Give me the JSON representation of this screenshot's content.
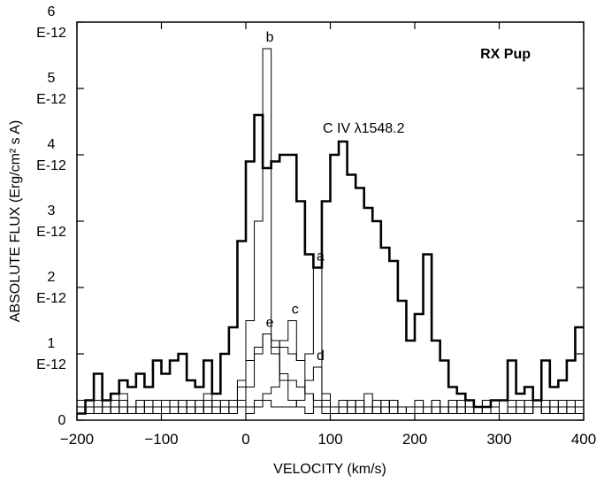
{
  "chart_data": {
    "type": "step",
    "title": "RX Pup",
    "annotation": "C IV λ1548.2",
    "x_label": "VELOCITY (km/s)",
    "y_label": "ABSOLUTE FLUX (Erg/cm² s A)",
    "xlim": [
      -200,
      400
    ],
    "ylim": [
      0,
      6e-12
    ],
    "xticks": [
      {
        "value": -200,
        "label": "−200"
      },
      {
        "value": -100,
        "label": "−100"
      },
      0,
      100,
      200,
      300,
      400
    ],
    "yticks": [
      0,
      {
        "value": 1e-12,
        "label": "1 E-12"
      },
      {
        "value": 2e-12,
        "label": "2 E-12"
      },
      {
        "value": 3e-12,
        "label": "3 E-12"
      },
      {
        "value": 4e-12,
        "label": "4 E-12"
      },
      {
        "value": 5e-12,
        "label": "5 E-12"
      },
      {
        "value": 6e-12,
        "label": "6 E-12"
      }
    ],
    "x": [
      -200,
      -190,
      -180,
      -170,
      -160,
      -150,
      -140,
      -130,
      -120,
      -110,
      -100,
      -90,
      -80,
      -70,
      -60,
      -50,
      -40,
      -30,
      -20,
      -10,
      0,
      10,
      20,
      30,
      40,
      50,
      60,
      70,
      80,
      90,
      100,
      110,
      120,
      130,
      140,
      150,
      160,
      170,
      180,
      190,
      200,
      210,
      220,
      230,
      240,
      250,
      260,
      270,
      280,
      290,
      300,
      310,
      320,
      330,
      340,
      350,
      360,
      370,
      380,
      390
    ],
    "series": [
      {
        "color": "#000000",
        "width": 2.6,
        "values": [
          1e-13,
          3e-13,
          7e-13,
          3e-13,
          4e-13,
          6e-13,
          5e-13,
          7e-13,
          5e-13,
          9e-13,
          7e-13,
          9e-13,
          1e-12,
          6e-13,
          5e-13,
          9e-13,
          4e-13,
          1e-12,
          1.4e-12,
          2.7e-12,
          3.9e-12,
          4.6e-12,
          3.8e-12,
          3.9e-12,
          4e-12,
          4e-12,
          3.3e-12,
          2.5e-12,
          2.3e-12,
          3.3e-12,
          4e-12,
          4.2e-12,
          3.7e-12,
          3.5e-12,
          3.2e-12,
          3e-12,
          2.6e-12,
          2.4e-12,
          1.8e-12,
          1.2e-12,
          1.6e-12,
          2.5e-12,
          1.2e-12,
          9e-13,
          5e-13,
          4e-13,
          3e-13,
          2e-13,
          2e-13,
          3e-13,
          3e-13,
          9e-13,
          4e-13,
          5e-13,
          3e-13,
          9e-13,
          5e-13,
          6e-13,
          9e-13,
          1.4e-12
        ]
      },
      {
        "name": "a",
        "color": "#000000",
        "width": 1,
        "values": [
          2e-13,
          1e-13,
          3e-13,
          2e-13,
          1e-13,
          4e-13,
          2e-13,
          1e-13,
          3e-13,
          2e-13,
          1e-13,
          2e-13,
          3e-13,
          1e-13,
          2e-13,
          4e-13,
          2e-13,
          1e-13,
          3e-13,
          5e-13,
          9e-13,
          1.1e-12,
          1.3e-12,
          1.2e-12,
          1.1e-12,
          1e-12,
          9e-13,
          1e-12,
          2.3e-12,
          4e-13,
          2e-13,
          1e-13,
          3e-13,
          2e-13,
          1e-13,
          2e-13,
          3e-13,
          1e-13,
          2e-13,
          1e-13,
          3e-13,
          2e-13,
          1e-13,
          2e-13,
          3e-13,
          1e-13,
          2e-13,
          1e-13,
          3e-13,
          2e-13,
          1e-13,
          2e-13,
          1e-13,
          3e-13,
          2e-13,
          1e-13,
          2e-13,
          3e-13,
          1e-13,
          2e-13
        ]
      },
      {
        "name": "b",
        "color": "#000000",
        "width": 1,
        "values": [
          1e-13,
          3e-13,
          2e-13,
          1e-13,
          2e-13,
          3e-13,
          1e-13,
          2e-13,
          1e-13,
          3e-13,
          2e-13,
          1e-13,
          2e-13,
          3e-13,
          1e-13,
          2e-13,
          1e-13,
          3e-13,
          2e-13,
          6e-13,
          1.5e-12,
          3e-12,
          5.6e-12,
          1e-12,
          7e-13,
          6e-13,
          5e-13,
          4e-13,
          3e-13,
          2e-13,
          1e-13,
          3e-13,
          2e-13,
          1e-13,
          2e-13,
          3e-13,
          1e-13,
          2e-13,
          1e-13,
          2e-13,
          3e-13,
          1e-13,
          2e-13,
          1e-13,
          2e-13,
          3e-13,
          2e-13,
          1e-13,
          2e-13,
          3e-13,
          1e-13,
          2e-13,
          3e-13,
          1e-13,
          2e-13,
          1e-13,
          3e-13,
          2e-13,
          1e-13,
          3e-13
        ]
      },
      {
        "name": "c",
        "color": "#000000",
        "width": 1,
        "values": [
          3e-13,
          1e-13,
          2e-13,
          3e-13,
          1e-13,
          2e-13,
          1e-13,
          3e-13,
          2e-13,
          1e-13,
          2e-13,
          3e-13,
          1e-13,
          2e-13,
          1e-13,
          3e-13,
          2e-13,
          1e-13,
          2e-13,
          3e-13,
          2e-13,
          3e-13,
          4e-13,
          5e-13,
          1.2e-12,
          1.5e-12,
          9e-13,
          4e-13,
          2e-13,
          1e-13,
          2e-13,
          3e-13,
          1e-13,
          2e-13,
          4e-13,
          2e-13,
          1e-13,
          3e-13,
          2e-13,
          1e-13,
          2e-13,
          1e-13,
          3e-13,
          2e-13,
          1e-13,
          2e-13,
          3e-13,
          1e-13,
          2e-13,
          1e-13,
          3e-13,
          2e-13,
          1e-13,
          2e-13,
          3e-13,
          1e-13,
          2e-13,
          1e-13,
          2e-13,
          3e-13
        ]
      },
      {
        "name": "d",
        "color": "#000000",
        "width": 1,
        "values": [
          2e-13,
          2e-13,
          1e-13,
          3e-13,
          2e-13,
          1e-13,
          2e-13,
          3e-13,
          1e-13,
          2e-13,
          3e-13,
          1e-13,
          2e-13,
          1e-13,
          3e-13,
          1e-13,
          2e-13,
          2e-13,
          1e-13,
          2e-13,
          1e-13,
          2e-13,
          3e-13,
          2e-13,
          2e-13,
          2e-13,
          3e-13,
          6e-13,
          8e-13,
          3e-13,
          1e-13,
          2e-13,
          3e-13,
          1e-13,
          2e-13,
          1e-13,
          2e-13,
          3e-13,
          1e-13,
          2e-13,
          3e-13,
          1e-13,
          2e-13,
          1e-13,
          3e-13,
          2e-13,
          1e-13,
          2e-13,
          3e-13,
          2e-13,
          1e-13,
          3e-13,
          2e-13,
          1e-13,
          2e-13,
          3e-13,
          1e-13,
          2e-13,
          1e-13,
          2e-13
        ]
      },
      {
        "name": "e",
        "color": "#000000",
        "width": 1,
        "values": [
          1e-13,
          2e-13,
          3e-13,
          1e-13,
          3e-13,
          2e-13,
          1e-13,
          2e-13,
          3e-13,
          1e-13,
          2e-13,
          1e-13,
          3e-13,
          2e-13,
          1e-13,
          2e-13,
          3e-13,
          1e-13,
          2e-13,
          3e-13,
          5e-13,
          1e-12,
          1.3e-12,
          1.1e-12,
          6e-13,
          3e-13,
          2e-13,
          1e-13,
          2e-13,
          3e-13,
          1e-13,
          2e-13,
          1e-13,
          3e-13,
          2e-13,
          1e-13,
          2e-13,
          3e-13,
          1e-13,
          2e-13,
          1e-13,
          2e-13,
          3e-13,
          1e-13,
          2e-13,
          1e-13,
          3e-13,
          2e-13,
          1e-13,
          2e-13,
          3e-13,
          1e-13,
          2e-13,
          1e-13,
          3e-13,
          2e-13,
          1e-13,
          2e-13,
          3e-13,
          1e-13
        ]
      }
    ]
  }
}
